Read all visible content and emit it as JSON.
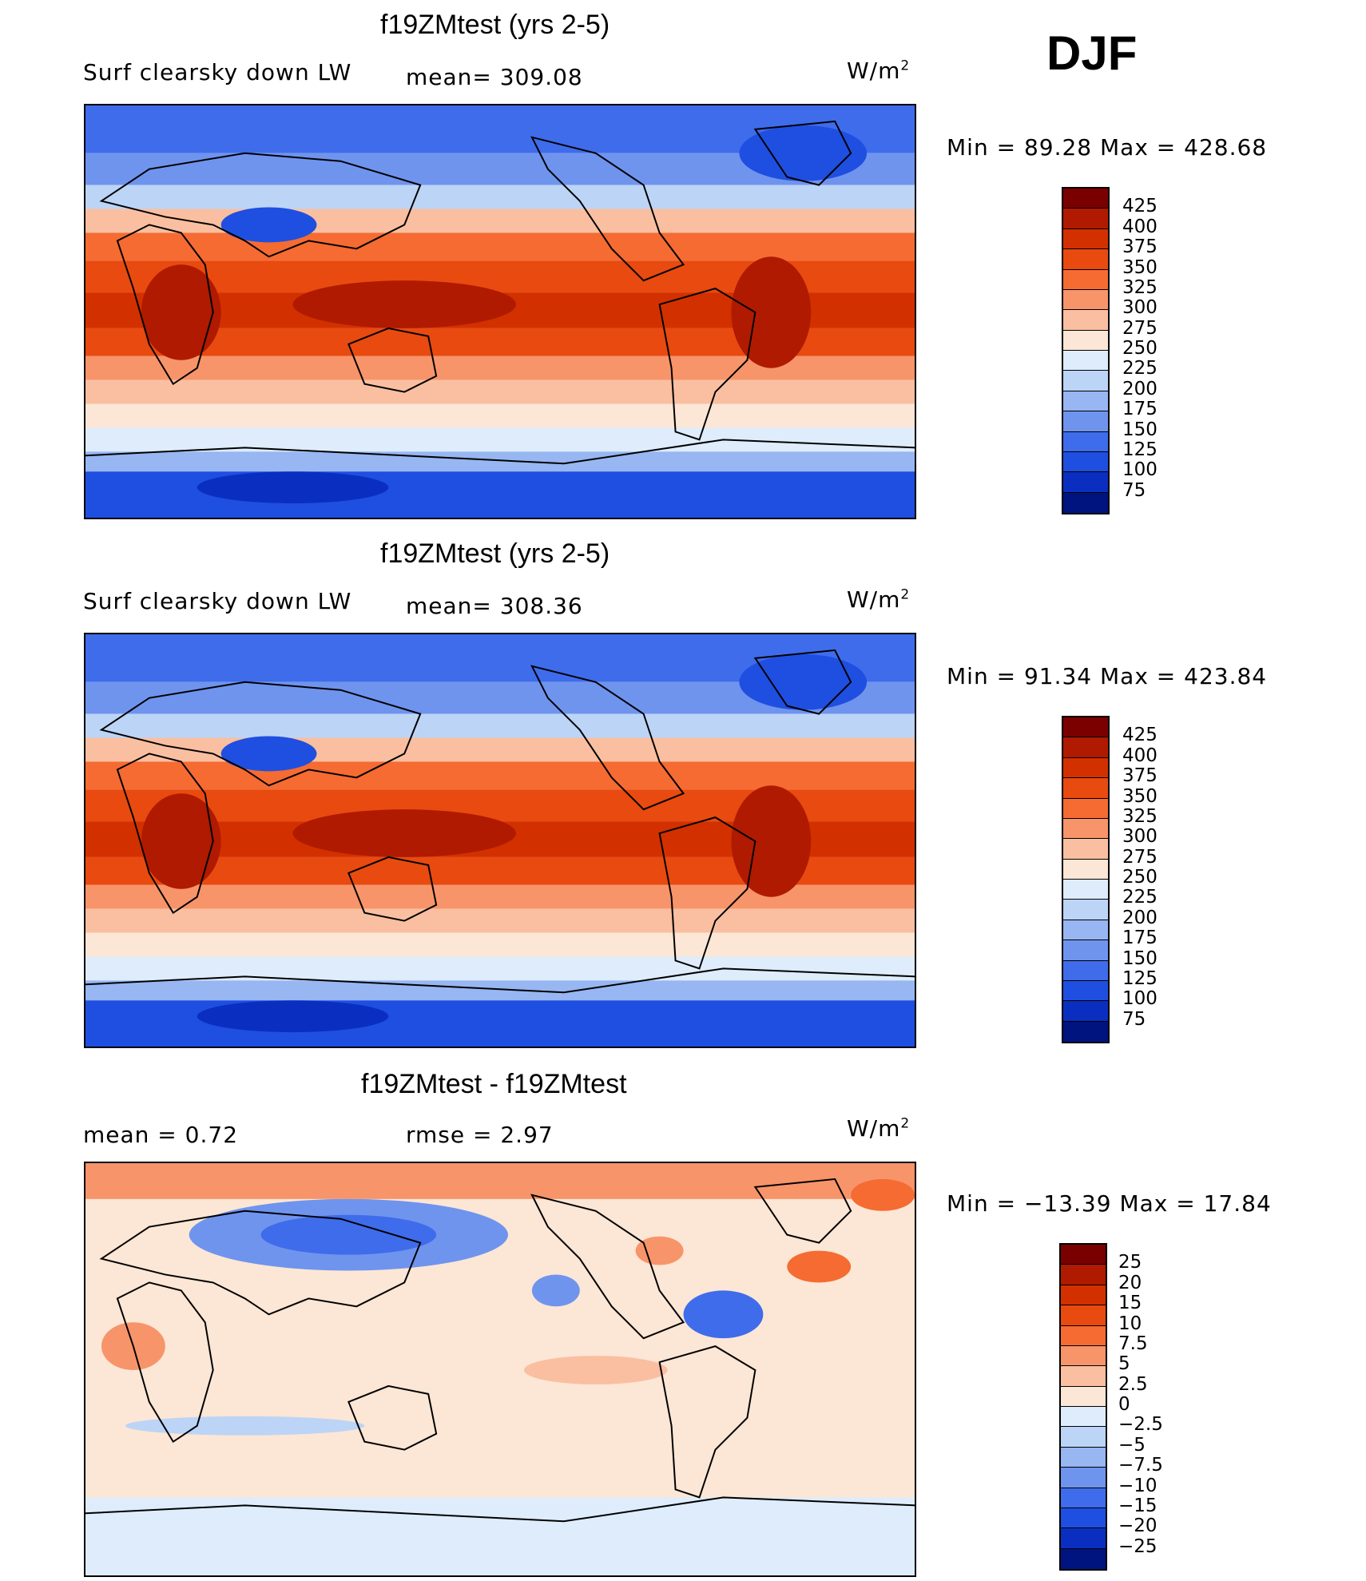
{
  "season": "DJF",
  "panels": [
    {
      "title": "f19ZMtest (yrs 2-5)",
      "left_label": "Surf clearsky down LW",
      "center_label": "mean= 309.08",
      "units_base": "W/m",
      "units_sup": "2",
      "min_max": "Min = 89.28 Max = 428.68",
      "colorbar": {
        "labels": [
          "425",
          "400",
          "375",
          "350",
          "325",
          "300",
          "275",
          "250",
          "225",
          "200",
          "175",
          "150",
          "125",
          "100",
          "75"
        ],
        "colors": [
          "#7a0000",
          "#b01a00",
          "#d33000",
          "#e84a10",
          "#f56b32",
          "#f7946a",
          "#f9bfa0",
          "#fce6d5",
          "#deecfb",
          "#bcd4f6",
          "#97b6f2",
          "#6f94ee",
          "#3f6ceb",
          "#1f4fe0",
          "#0a2fc0",
          "#001480"
        ]
      }
    },
    {
      "title": "f19ZMtest (yrs 2-5)",
      "left_label": "Surf clearsky down LW",
      "center_label": "mean= 308.36",
      "units_base": "W/m",
      "units_sup": "2",
      "min_max": "Min = 91.34 Max = 423.84",
      "colorbar": {
        "labels": [
          "425",
          "400",
          "375",
          "350",
          "325",
          "300",
          "275",
          "250",
          "225",
          "200",
          "175",
          "150",
          "125",
          "100",
          "75"
        ],
        "colors": [
          "#7a0000",
          "#b01a00",
          "#d33000",
          "#e84a10",
          "#f56b32",
          "#f7946a",
          "#f9bfa0",
          "#fce6d5",
          "#deecfb",
          "#bcd4f6",
          "#97b6f2",
          "#6f94ee",
          "#3f6ceb",
          "#1f4fe0",
          "#0a2fc0",
          "#001480"
        ]
      }
    },
    {
      "title": "f19ZMtest - f19ZMtest",
      "left_label": "mean =    0.72",
      "center_label": "rmse =    2.97",
      "units_base": "W/m",
      "units_sup": "2",
      "min_max": "Min = −13.39 Max =   17.84",
      "colorbar": {
        "labels": [
          "25",
          "20",
          "15",
          "10",
          "7.5",
          "5",
          "2.5",
          "0",
          "−2.5",
          "−5",
          "−7.5",
          "−10",
          "−15",
          "−20",
          "−25"
        ],
        "colors": [
          "#7a0000",
          "#b01a00",
          "#d33000",
          "#e84a10",
          "#f56b32",
          "#f7946a",
          "#f9bfa0",
          "#fce6d5",
          "#deecfb",
          "#bcd4f6",
          "#97b6f2",
          "#6f94ee",
          "#3f6ceb",
          "#1f4fe0",
          "#0a2fc0",
          "#001480"
        ]
      }
    }
  ]
}
